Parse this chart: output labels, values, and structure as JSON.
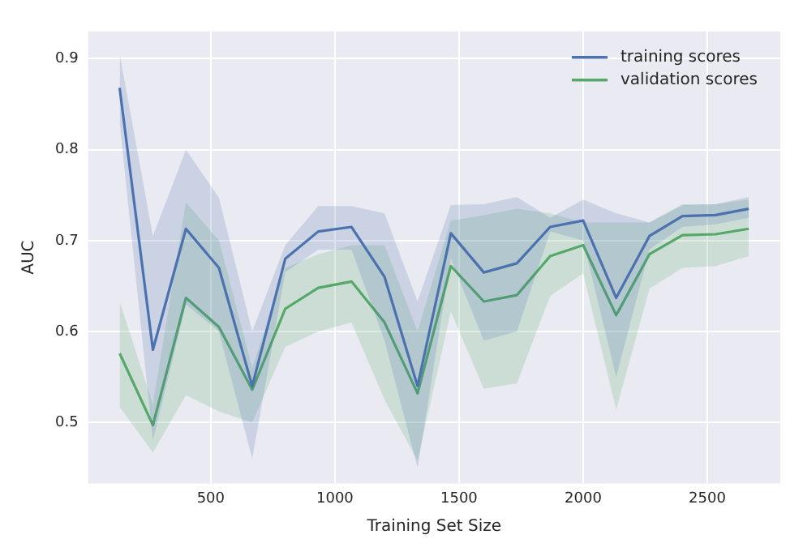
{
  "chart_data": {
    "type": "line",
    "xlabel": "Training Set Size",
    "ylabel": "AUC",
    "x": [
      133,
      267,
      400,
      533,
      667,
      800,
      933,
      1067,
      1200,
      1333,
      1467,
      1600,
      1733,
      1867,
      2000,
      2133,
      2267,
      2400,
      2533,
      2667
    ],
    "series": [
      {
        "name": "training scores",
        "color": "#4c72b0",
        "values": [
          0.868,
          0.58,
          0.713,
          0.67,
          0.54,
          0.68,
          0.71,
          0.715,
          0.66,
          0.54,
          0.708,
          0.665,
          0.675,
          0.715,
          0.722,
          0.637,
          0.705,
          0.727,
          0.728,
          0.735
        ],
        "lower": [
          0.83,
          0.48,
          0.63,
          0.6,
          0.46,
          0.665,
          0.69,
          0.69,
          0.59,
          0.45,
          0.68,
          0.59,
          0.6,
          0.71,
          0.7,
          0.55,
          0.69,
          0.715,
          0.718,
          0.725
        ],
        "upper": [
          0.905,
          0.705,
          0.8,
          0.747,
          0.6,
          0.695,
          0.738,
          0.738,
          0.73,
          0.633,
          0.739,
          0.74,
          0.748,
          0.725,
          0.745,
          0.73,
          0.72,
          0.739,
          0.74,
          0.748
        ]
      },
      {
        "name": "validation scores",
        "color": "#55a868",
        "values": [
          0.576,
          0.497,
          0.637,
          0.605,
          0.536,
          0.625,
          0.648,
          0.655,
          0.61,
          0.532,
          0.672,
          0.633,
          0.64,
          0.683,
          0.695,
          0.618,
          0.685,
          0.706,
          0.707,
          0.713
        ],
        "lower": [
          0.517,
          0.467,
          0.53,
          0.512,
          0.5,
          0.583,
          0.6,
          0.61,
          0.525,
          0.458,
          0.622,
          0.537,
          0.543,
          0.639,
          0.664,
          0.514,
          0.647,
          0.67,
          0.672,
          0.683
        ],
        "upper": [
          0.633,
          0.52,
          0.742,
          0.7,
          0.56,
          0.67,
          0.685,
          0.695,
          0.695,
          0.6,
          0.722,
          0.728,
          0.735,
          0.73,
          0.72,
          0.72,
          0.72,
          0.74,
          0.74,
          0.745
        ]
      }
    ],
    "xlim": [
      6,
      2794
    ],
    "xticks": [
      500,
      1000,
      1500,
      2000,
      2500
    ],
    "ylim": [
      0.433,
      0.93
    ],
    "yticks": [
      0.5,
      0.6,
      0.7,
      0.8,
      0.9
    ],
    "grid": true,
    "legend": "top right",
    "marker": "none",
    "line_style": "solid"
  }
}
